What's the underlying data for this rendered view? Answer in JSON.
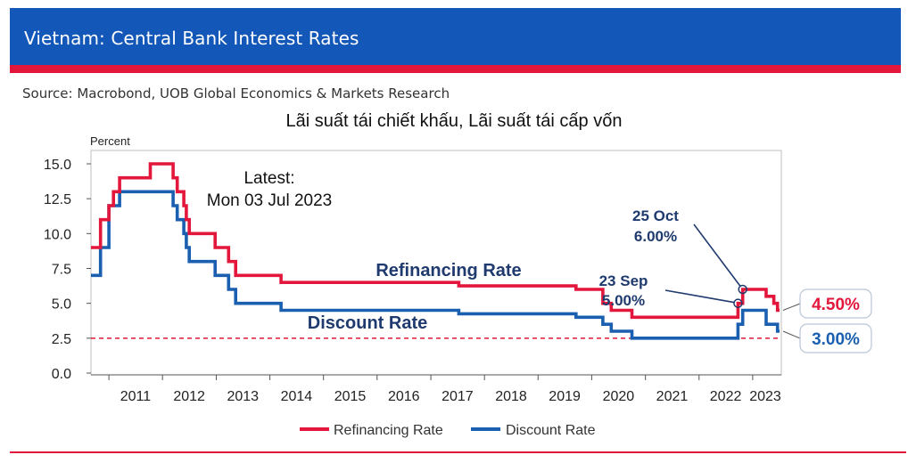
{
  "header": {
    "title": "Vietnam: Central Bank Interest Rates",
    "source": "Source: Macrobond, UOB Global Economics & Markets Research"
  },
  "colors": {
    "banner": "#1357b8",
    "accent_red": "#e3173b",
    "refinancing": "#e3173b",
    "discount": "#1a5fb0",
    "annotation": "#1f3a6e"
  },
  "chart_data": {
    "type": "line",
    "title": "Lãi suất tái chiết khấu, Lãi suất tái cấp vốn",
    "ylabel": "Percent",
    "ylim": [
      0,
      15
    ],
    "y_ticks": [
      "0.0",
      "2.5",
      "5.0",
      "7.5",
      "10.0",
      "12.5",
      "15.0"
    ],
    "xlim": [
      "2010-09-01",
      "2023-07-15"
    ],
    "x_ticks": [
      "2011",
      "2012",
      "2013",
      "2014",
      "2015",
      "2016",
      "2017",
      "2018",
      "2019",
      "2020",
      "2021",
      "2022",
      "2023"
    ],
    "legend_position": "bottom",
    "grid": false,
    "reference_line": {
      "y": 2.5,
      "style": "dashed"
    },
    "latest_label": "Latest:",
    "latest_date": "Mon 03 Jul 2023",
    "series": [
      {
        "name": "Refinancing Rate",
        "color": "#e3173b",
        "points": [
          [
            "2010-09-01",
            9.0
          ],
          [
            "2010-11-05",
            9.0
          ],
          [
            "2010-11-05",
            11.0
          ],
          [
            "2011-01-01",
            11.0
          ],
          [
            "2011-01-01",
            12.0
          ],
          [
            "2011-02-01",
            12.0
          ],
          [
            "2011-02-01",
            13.0
          ],
          [
            "2011-03-15",
            13.0
          ],
          [
            "2011-03-15",
            14.0
          ],
          [
            "2011-10-10",
            14.0
          ],
          [
            "2011-10-10",
            15.0
          ],
          [
            "2012-03-13",
            15.0
          ],
          [
            "2012-03-13",
            14.0
          ],
          [
            "2012-04-10",
            14.0
          ],
          [
            "2012-04-10",
            13.0
          ],
          [
            "2012-05-25",
            13.0
          ],
          [
            "2012-05-25",
            12.0
          ],
          [
            "2012-06-11",
            12.0
          ],
          [
            "2012-06-11",
            11.0
          ],
          [
            "2012-07-01",
            11.0
          ],
          [
            "2012-07-01",
            10.0
          ],
          [
            "2012-12-24",
            10.0
          ],
          [
            "2012-12-24",
            9.0
          ],
          [
            "2013-03-26",
            9.0
          ],
          [
            "2013-03-26",
            8.0
          ],
          [
            "2013-05-13",
            8.0
          ],
          [
            "2013-05-13",
            7.0
          ],
          [
            "2014-03-18",
            7.0
          ],
          [
            "2014-03-18",
            6.5
          ],
          [
            "2017-07-10",
            6.5
          ],
          [
            "2017-07-10",
            6.25
          ],
          [
            "2019-09-16",
            6.25
          ],
          [
            "2019-09-16",
            6.0
          ],
          [
            "2020-03-17",
            6.0
          ],
          [
            "2020-03-17",
            5.0
          ],
          [
            "2020-05-13",
            5.0
          ],
          [
            "2020-05-13",
            4.5
          ],
          [
            "2020-10-01",
            4.5
          ],
          [
            "2020-10-01",
            4.0
          ],
          [
            "2022-09-23",
            4.0
          ],
          [
            "2022-09-23",
            5.0
          ],
          [
            "2022-10-25",
            5.0
          ],
          [
            "2022-10-25",
            6.0
          ],
          [
            "2023-04-03",
            6.0
          ],
          [
            "2023-04-03",
            5.5
          ],
          [
            "2023-05-25",
            5.5
          ],
          [
            "2023-05-25",
            5.0
          ],
          [
            "2023-06-19",
            5.0
          ],
          [
            "2023-06-19",
            4.5
          ],
          [
            "2023-07-03",
            4.5
          ]
        ]
      },
      {
        "name": "Discount Rate",
        "color": "#1a5fb0",
        "points": [
          [
            "2010-09-01",
            7.0
          ],
          [
            "2010-11-05",
            7.0
          ],
          [
            "2010-11-05",
            9.0
          ],
          [
            "2011-01-01",
            9.0
          ],
          [
            "2011-01-01",
            12.0
          ],
          [
            "2011-03-15",
            12.0
          ],
          [
            "2011-03-15",
            13.0
          ],
          [
            "2012-03-13",
            13.0
          ],
          [
            "2012-03-13",
            12.0
          ],
          [
            "2012-04-10",
            12.0
          ],
          [
            "2012-04-10",
            11.0
          ],
          [
            "2012-05-25",
            11.0
          ],
          [
            "2012-05-25",
            10.0
          ],
          [
            "2012-06-11",
            10.0
          ],
          [
            "2012-06-11",
            9.0
          ],
          [
            "2012-07-01",
            9.0
          ],
          [
            "2012-07-01",
            8.0
          ],
          [
            "2012-12-24",
            8.0
          ],
          [
            "2012-12-24",
            7.0
          ],
          [
            "2013-03-26",
            7.0
          ],
          [
            "2013-03-26",
            6.0
          ],
          [
            "2013-05-13",
            6.0
          ],
          [
            "2013-05-13",
            5.0
          ],
          [
            "2014-03-18",
            5.0
          ],
          [
            "2014-03-18",
            4.5
          ],
          [
            "2017-07-10",
            4.5
          ],
          [
            "2017-07-10",
            4.25
          ],
          [
            "2019-09-16",
            4.25
          ],
          [
            "2019-09-16",
            4.0
          ],
          [
            "2020-03-17",
            4.0
          ],
          [
            "2020-03-17",
            3.5
          ],
          [
            "2020-05-13",
            3.5
          ],
          [
            "2020-05-13",
            3.0
          ],
          [
            "2020-10-01",
            3.0
          ],
          [
            "2020-10-01",
            2.5
          ],
          [
            "2022-09-23",
            2.5
          ],
          [
            "2022-09-23",
            3.5
          ],
          [
            "2022-10-25",
            3.5
          ],
          [
            "2022-10-25",
            4.5
          ],
          [
            "2023-04-03",
            4.5
          ],
          [
            "2023-04-03",
            3.5
          ],
          [
            "2023-06-19",
            3.5
          ],
          [
            "2023-06-19",
            3.0
          ],
          [
            "2023-07-03",
            3.0
          ]
        ]
      }
    ],
    "annotations": [
      {
        "label": "Refinancing Rate",
        "series": "Refinancing Rate"
      },
      {
        "label": "Discount Rate",
        "series": "Discount Rate"
      },
      {
        "line1": "23 Sep",
        "line2": "5.00%",
        "x": "2022-09-23",
        "y": 5.0
      },
      {
        "line1": "25 Oct",
        "line2": "6.00%",
        "x": "2022-10-25",
        "y": 6.0
      }
    ],
    "end_labels": [
      {
        "text": "4.50%",
        "series": "Refinancing Rate",
        "value": 4.5
      },
      {
        "text": "3.00%",
        "series": "Discount Rate",
        "value": 3.0
      }
    ],
    "legend": [
      "Refinancing Rate",
      "Discount Rate"
    ]
  }
}
